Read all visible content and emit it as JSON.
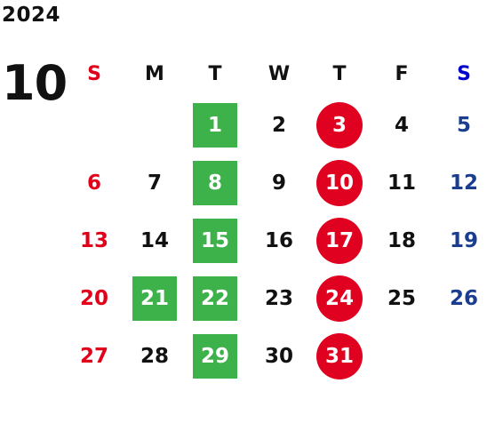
{
  "calendar": {
    "year": "2024",
    "month": "10",
    "weekdays": [
      "S",
      "M",
      "T",
      "W",
      "T",
      "F",
      "S"
    ],
    "weeks": [
      [
        "",
        "",
        "1",
        "2",
        "3",
        "4",
        "5"
      ],
      [
        "6",
        "7",
        "8",
        "9",
        "10",
        "11",
        "12"
      ],
      [
        "13",
        "14",
        "15",
        "16",
        "17",
        "18",
        "19"
      ],
      [
        "20",
        "21",
        "22",
        "23",
        "24",
        "25",
        "26"
      ],
      [
        "27",
        "28",
        "29",
        "30",
        "31",
        "",
        ""
      ]
    ],
    "highlight_green_days": [
      "1",
      "8",
      "15",
      "21",
      "22",
      "29"
    ],
    "highlight_red_circle_days": [
      "3",
      "10",
      "17",
      "24",
      "31"
    ],
    "colors": {
      "sunday": "#e00019",
      "saturday": "#1a3d8f",
      "saturday_header": "#0000cc",
      "green_mark": "#3db24b",
      "red_mark": "#e00020"
    }
  }
}
